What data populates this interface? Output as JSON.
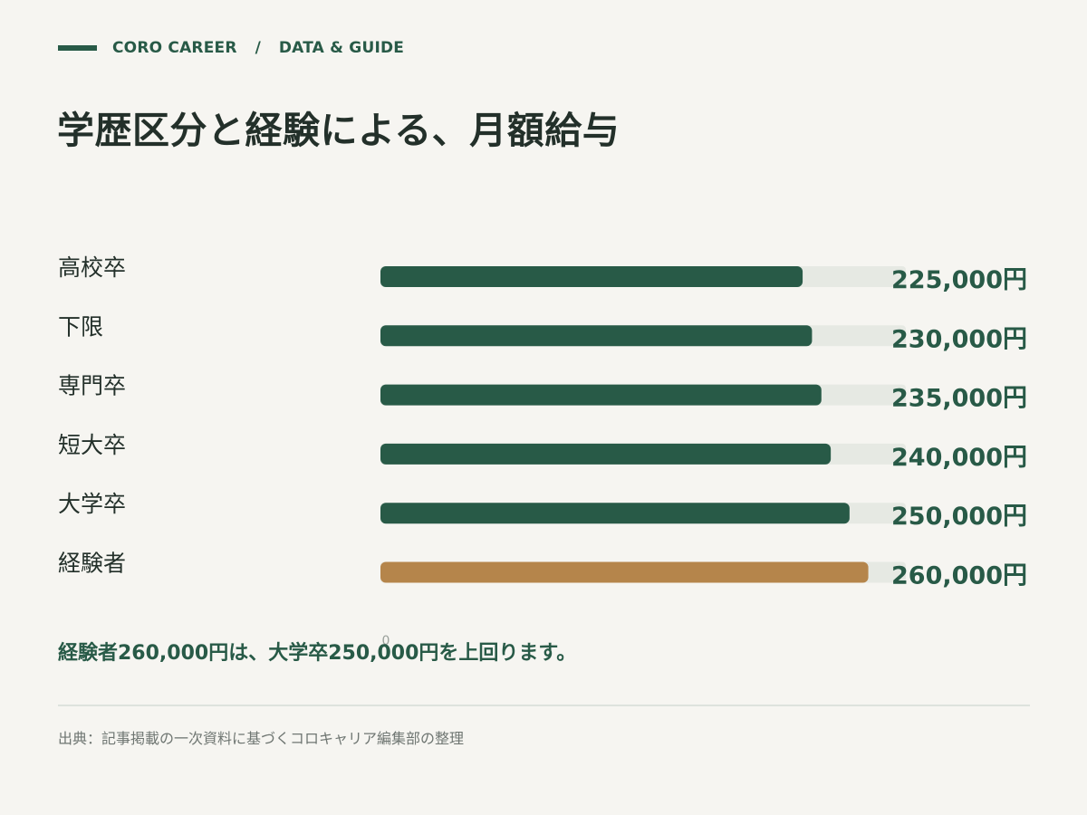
{
  "header": {
    "brand": "CORO CAREER",
    "separator": "/",
    "section": "DATA & GUIDE"
  },
  "title": "学歴区分と経験による、月額給与",
  "chart_data": {
    "type": "bar",
    "orientation": "horizontal",
    "categories": [
      "高校卒",
      "下限",
      "専門卒",
      "短大卒",
      "大学卒",
      "経験者"
    ],
    "values": [
      225000,
      230000,
      235000,
      240000,
      250000,
      260000
    ],
    "value_labels": [
      "225,000円",
      "230,000円",
      "235,000円",
      "240,000円",
      "250,000円",
      "260,000円"
    ],
    "axis_tick": "0",
    "xlim": [
      0,
      280000
    ],
    "grid": false,
    "colors": {
      "default": "#285a47",
      "highlight": "#b5854b",
      "track": "#e6e9e3"
    },
    "highlight_category": "経験者"
  },
  "note": "経験者260,000円は、大学卒250,000円を上回ります。",
  "source": "出典：記事掲載の一次資料に基づくコロキャリア編集部の整理"
}
